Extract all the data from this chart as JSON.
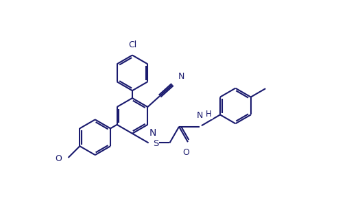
{
  "bg": "#ffffff",
  "lc": "#1a1a6e",
  "lw": 1.5,
  "fs": 9.0,
  "figsize": [
    5.25,
    3.18
  ],
  "dpi": 100,
  "R": 0.52,
  "DG": 0.055,
  "SH": 0.1,
  "xlim": [
    0.0,
    10.5
  ],
  "ylim": [
    0.0,
    6.4
  ]
}
